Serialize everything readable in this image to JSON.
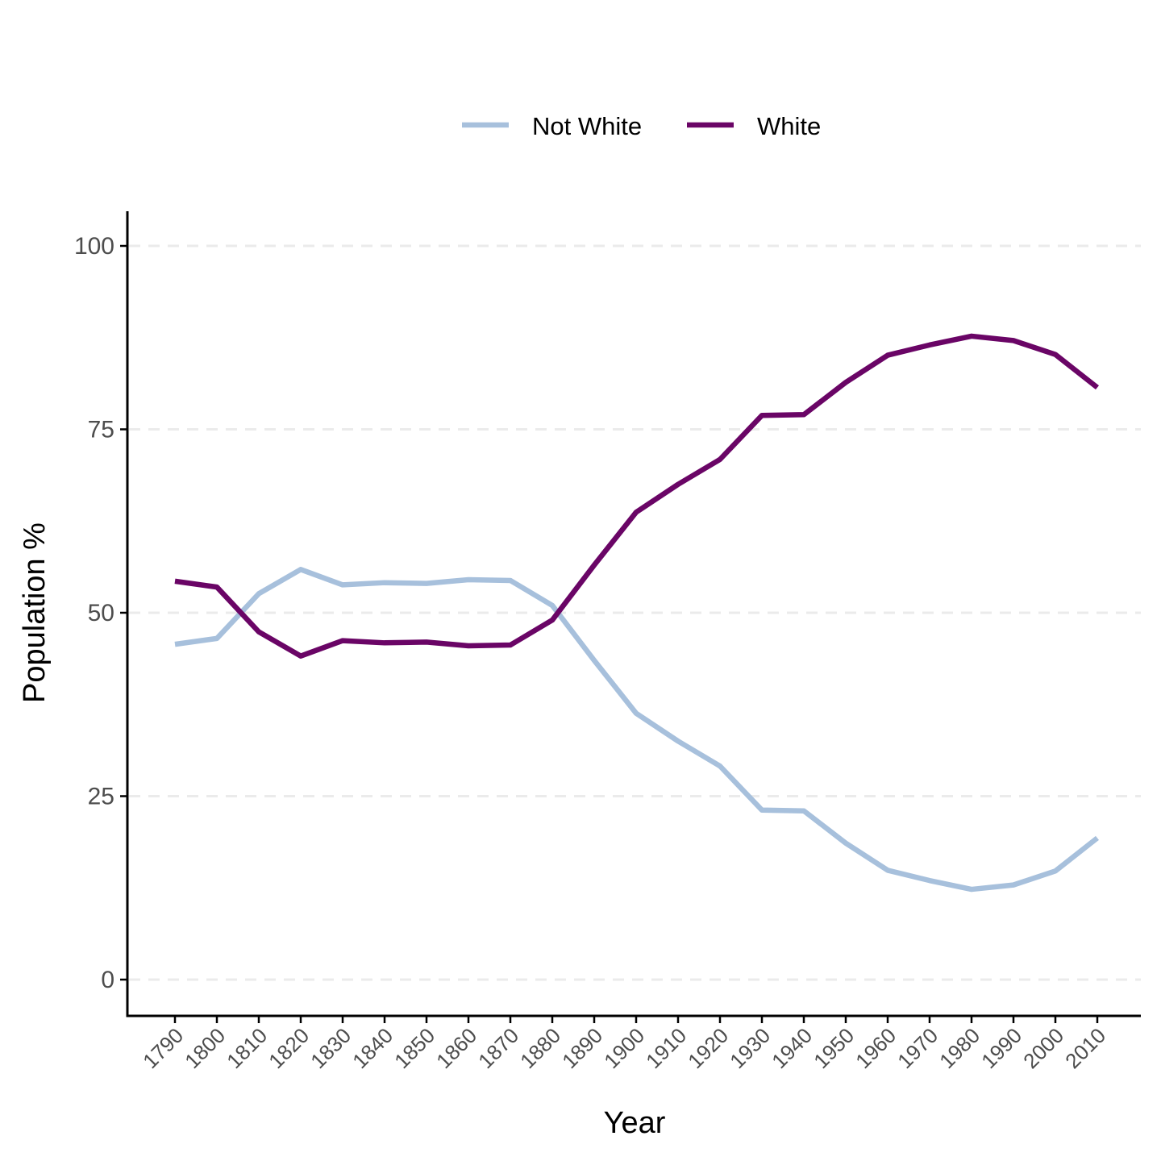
{
  "chart_data": {
    "type": "line",
    "title": "",
    "xlabel": "Year",
    "ylabel": "Population %",
    "ylim": [
      -10,
      105
    ],
    "yticks": [
      0,
      25,
      50,
      75,
      100
    ],
    "grid": "horizontal-dashed",
    "legend_position": "top",
    "x": [
      1790,
      1800,
      1810,
      1820,
      1830,
      1840,
      1850,
      1860,
      1870,
      1880,
      1890,
      1900,
      1910,
      1920,
      1930,
      1940,
      1950,
      1960,
      1970,
      1980,
      1990,
      2000,
      2010
    ],
    "series": [
      {
        "name": "Not White",
        "color": "#a7c0dc",
        "values": [
          45.7,
          46.5,
          52.6,
          55.9,
          53.8,
          54.1,
          54.0,
          54.5,
          54.4,
          51.0,
          43.5,
          36.3,
          32.5,
          29.1,
          23.1,
          23.0,
          18.6,
          14.9,
          13.5,
          12.3,
          12.9,
          14.8,
          19.3
        ]
      },
      {
        "name": "White",
        "color": "#6a0566",
        "values": [
          54.3,
          53.5,
          47.4,
          44.1,
          46.2,
          45.9,
          46.0,
          45.5,
          45.6,
          49.0,
          56.5,
          63.7,
          67.5,
          70.9,
          76.9,
          77.0,
          81.4,
          85.1,
          86.5,
          87.7,
          87.1,
          85.2,
          80.7
        ]
      }
    ]
  }
}
